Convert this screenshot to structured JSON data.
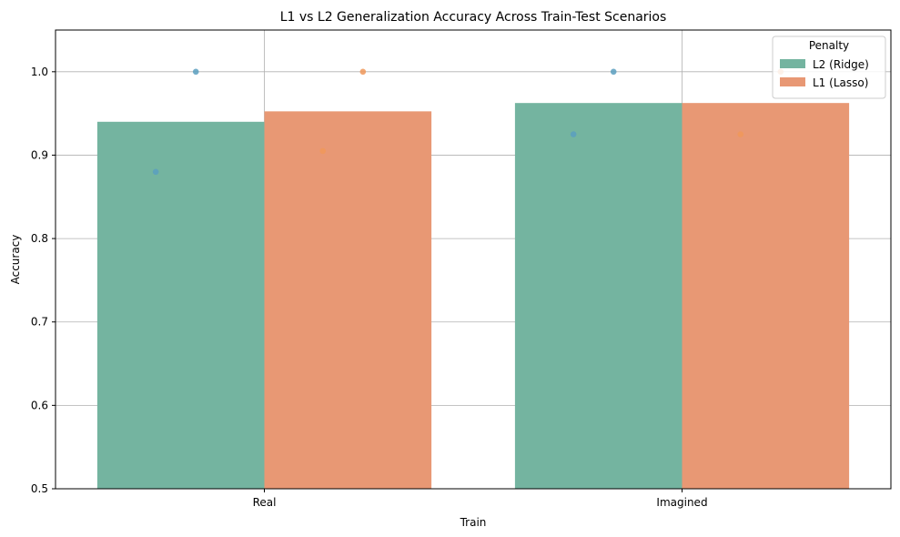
{
  "chart_data": {
    "type": "bar",
    "title": "L1 vs L2 Generalization Accuracy Across Train-Test Scenarios",
    "xlabel": "Train",
    "ylabel": "Accuracy",
    "categories": [
      "Real",
      "Imagined"
    ],
    "ylim": [
      0.5,
      1.05
    ],
    "yticks": [
      0.5,
      0.6,
      0.7,
      0.8,
      0.9,
      1.0
    ],
    "ytick_labels": [
      "0.5",
      "0.6",
      "0.7",
      "0.8",
      "0.9",
      "1.0"
    ],
    "grid": true,
    "legend": {
      "title": "Penalty",
      "placement": "top-right"
    },
    "series": [
      {
        "name": "L2 (Ridge)",
        "color": "#74b4a0",
        "point_color": "#5a9fc0",
        "values": [
          0.94,
          0.9625
        ],
        "points": [
          [
            0.88,
            1.0
          ],
          [
            0.925,
            1.0
          ]
        ]
      },
      {
        "name": "L1 (Lasso)",
        "color": "#e89874",
        "point_color": "#f0985a",
        "values": [
          0.9525,
          0.9625
        ],
        "points": [
          [
            0.905,
            1.0
          ],
          [
            0.925,
            1.0
          ]
        ]
      }
    ]
  }
}
